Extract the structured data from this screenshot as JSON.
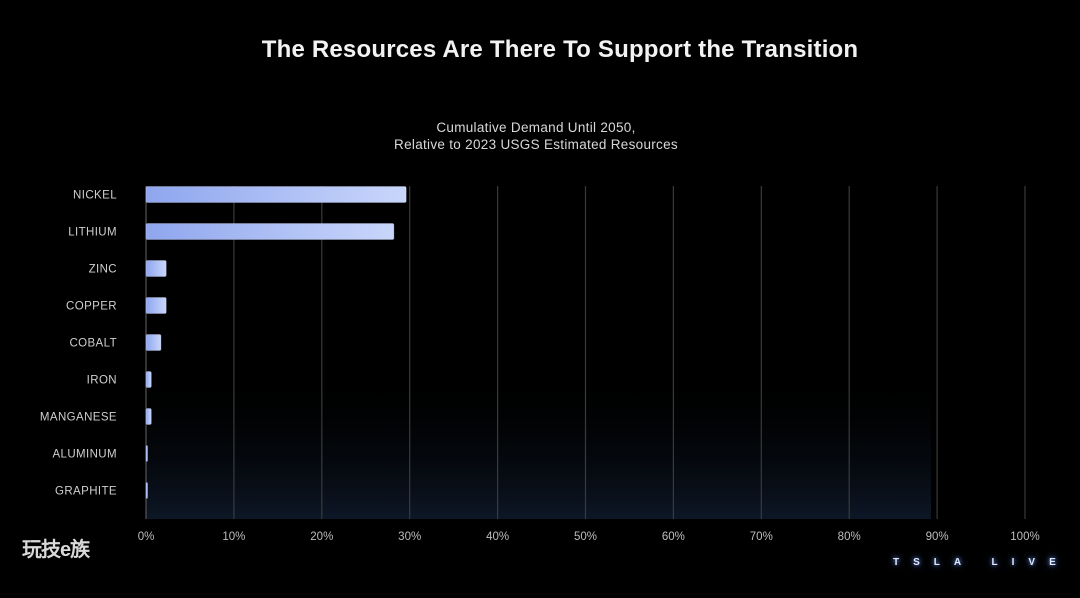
{
  "slide": {
    "title": "The Resources Are There To Support the Transition",
    "subtitle_line1": "Cumulative Demand Until 2050,",
    "subtitle_line2": "Relative to 2023 USGS Estimated Resources",
    "watermark": "玩技e族",
    "brand": "TSLA LIVE"
  },
  "colors": {
    "background": "#000000",
    "bar_start": "#8fa6ee",
    "bar_end": "#c9d6fb",
    "gridline": "#3a3a3a",
    "panel": "#0d1726"
  },
  "chart_data": {
    "type": "bar",
    "orientation": "horizontal",
    "title": "Cumulative Demand Until 2050, Relative to 2023 USGS Estimated Resources",
    "xlabel": "",
    "ylabel": "",
    "categories": [
      "NICKEL",
      "LITHIUM",
      "ZINC",
      "COPPER",
      "COBALT",
      "IRON",
      "MANGANESE",
      "ALUMINUM",
      "GRAPHITE"
    ],
    "values": [
      29.6,
      28.2,
      2.3,
      2.3,
      1.7,
      0.6,
      0.6,
      0.1,
      0.1
    ],
    "unit": "%",
    "xlim": [
      0,
      100
    ],
    "xticks": [
      0,
      10,
      20,
      30,
      40,
      50,
      60,
      70,
      80,
      90,
      100
    ],
    "xtick_labels": [
      "0%",
      "10%",
      "20%",
      "30%",
      "40%",
      "50%",
      "60%",
      "70%",
      "80%",
      "90%",
      "100%"
    ],
    "grid": true,
    "legend": "none"
  }
}
